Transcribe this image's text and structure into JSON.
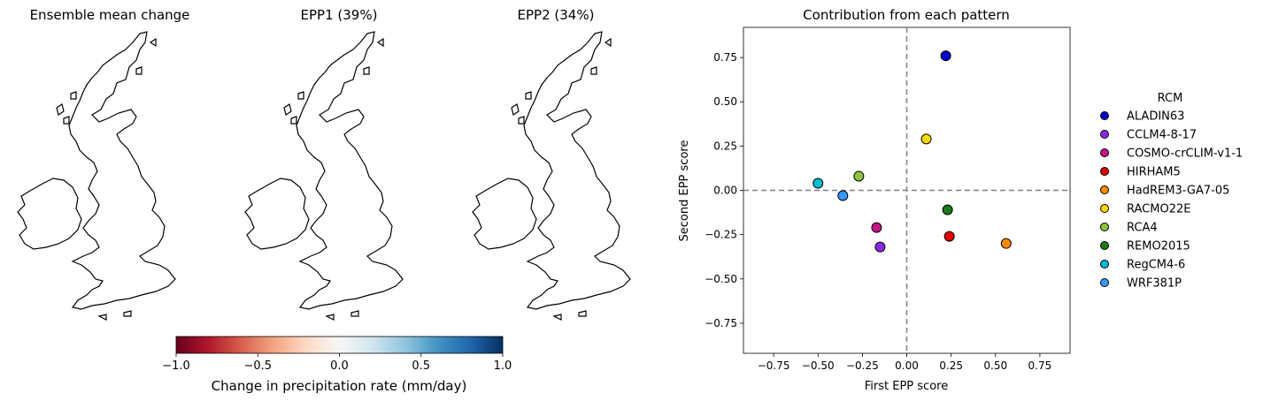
{
  "colors": {
    "land_fill": "#eef4f9",
    "coast": "#000000",
    "dashed": "#808080",
    "cmap_neg": "#67001f",
    "cmap_mid": "#f7f7f7",
    "cmap_pos": "#053061"
  },
  "maps": [
    {
      "title": "Ensemble mean change",
      "pattern": "mean"
    },
    {
      "title": "EPP1 (39%)",
      "pattern": "epp1"
    },
    {
      "title": "EPP2 (34%)",
      "pattern": "epp2"
    }
  ],
  "colorbar": {
    "label": "Change in precipitation rate (mm/day)",
    "min": -1.0,
    "max": 1.0,
    "ticks": [
      "−1.0",
      "−0.5",
      "0.0",
      "0.5",
      "1.0"
    ],
    "colormap": "RdBu"
  },
  "chart_data": {
    "type": "scatter",
    "title": "Contribution from each pattern",
    "xlabel": "First EPP score",
    "ylabel": "Second EPP score",
    "xlim": [
      -0.92,
      0.92
    ],
    "ylim": [
      -0.92,
      0.92
    ],
    "xticks": [
      "−0.75",
      "−0.50",
      "−0.25",
      "0.00",
      "0.25",
      "0.50",
      "0.75"
    ],
    "yticks": [
      "−0.75",
      "−0.50",
      "−0.25",
      "0.00",
      "0.25",
      "0.50",
      "0.75"
    ],
    "reference_lines": {
      "x": 0,
      "y": 0,
      "style": "dashed"
    },
    "legend": {
      "title": "RCM",
      "placement": "right, outside"
    },
    "series": [
      {
        "name": "ALADIN63",
        "x": 0.22,
        "y": 0.76,
        "color": "#0000cc"
      },
      {
        "name": "CCLM4-8-17",
        "x": -0.15,
        "y": -0.32,
        "color": "#8a2be2"
      },
      {
        "name": "COSMO-crCLIM-v1-1",
        "x": -0.17,
        "y": -0.21,
        "color": "#c71585"
      },
      {
        "name": "HIRHAM5",
        "x": 0.24,
        "y": -0.26,
        "color": "#e60000"
      },
      {
        "name": "HadREM3-GA7-05",
        "x": 0.56,
        "y": -0.3,
        "color": "#ff8c00"
      },
      {
        "name": "RACMO22E",
        "x": 0.11,
        "y": 0.29,
        "color": "#ffd700"
      },
      {
        "name": "RCA4",
        "x": -0.27,
        "y": 0.08,
        "color": "#8cc63f"
      },
      {
        "name": "REMO2015",
        "x": 0.23,
        "y": -0.11,
        "color": "#1a7a1a"
      },
      {
        "name": "RegCM4-6",
        "x": -0.5,
        "y": 0.04,
        "color": "#00bcd4"
      },
      {
        "name": "WRF381P",
        "x": -0.36,
        "y": -0.03,
        "color": "#3399ff"
      }
    ]
  }
}
